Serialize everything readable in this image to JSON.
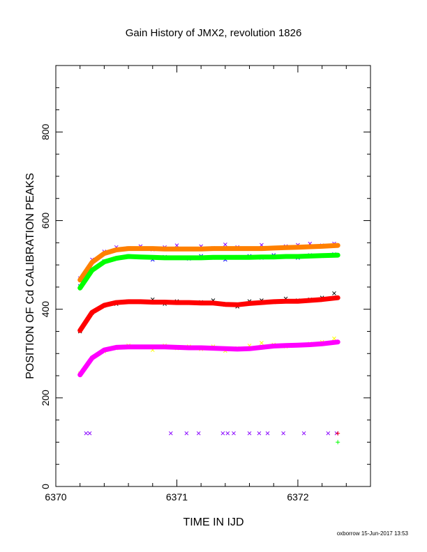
{
  "chart_data": {
    "type": "scatter",
    "title": "Gain History of JMX2, revolution 1826",
    "xlabel": "TIME IN IJD",
    "ylabel": "POSITION OF Cd CALIBRATION PEAKS",
    "xlim": [
      6370,
      6372.6
    ],
    "ylim": [
      0,
      950
    ],
    "x_ticks": [
      6370,
      6371,
      6372
    ],
    "x_tick_labels": [
      "6370",
      "6371",
      "6372"
    ],
    "y_ticks": [
      0,
      200,
      400,
      600,
      800
    ],
    "y_tick_labels": [
      "0",
      "200",
      "400",
      "600",
      "800"
    ],
    "footer": "oxborrow 15-Jun-2017 13:53",
    "series": [
      {
        "color": "#8800ff",
        "marker": "x",
        "role": "points",
        "x": [
          6370.2,
          6370.3,
          6370.4,
          6370.5,
          6370.6,
          6370.7,
          6370.8,
          6370.9,
          6371.0,
          6371.1,
          6371.2,
          6371.3,
          6371.4,
          6371.5,
          6371.6,
          6371.7,
          6371.8,
          6371.9,
          6372.0,
          6372.1,
          6372.2,
          6372.3
        ],
        "y": [
          470,
          512,
          530,
          540,
          538,
          542,
          535,
          540,
          544,
          536,
          542,
          538,
          546,
          540,
          536,
          545,
          538,
          542,
          545,
          548,
          544,
          548
        ]
      },
      {
        "color": "#0000ff",
        "marker": "x",
        "role": "points",
        "x": [
          6370.2,
          6370.3,
          6370.4,
          6370.5,
          6370.6,
          6370.7,
          6370.8,
          6370.9,
          6371.0,
          6371.1,
          6371.2,
          6371.3,
          6371.4,
          6371.5,
          6371.6,
          6371.7,
          6371.8,
          6371.9,
          6372.0,
          6372.1,
          6372.2,
          6372.3
        ],
        "y": [
          452,
          492,
          508,
          514,
          520,
          518,
          512,
          518,
          516,
          514,
          520,
          516,
          512,
          518,
          520,
          516,
          522,
          518,
          516,
          522,
          520,
          524
        ]
      },
      {
        "color": "#000000",
        "marker": "x",
        "role": "points",
        "x": [
          6370.2,
          6370.3,
          6370.4,
          6370.5,
          6370.6,
          6370.7,
          6370.8,
          6370.9,
          6371.0,
          6371.1,
          6371.2,
          6371.3,
          6371.4,
          6371.5,
          6371.6,
          6371.7,
          6371.8,
          6371.9,
          6372.0,
          6372.1,
          6372.2,
          6372.3
        ],
        "y": [
          350,
          392,
          408,
          412,
          418,
          416,
          422,
          412,
          418,
          414,
          416,
          420,
          410,
          406,
          418,
          420,
          416,
          424,
          420,
          422,
          426,
          436
        ]
      },
      {
        "color": "#ffff00",
        "marker": "x",
        "role": "points",
        "x": [
          6370.2,
          6370.3,
          6370.4,
          6370.5,
          6370.6,
          6370.7,
          6370.8,
          6370.9,
          6371.0,
          6371.1,
          6371.2,
          6371.3,
          6371.4,
          6371.5,
          6371.6,
          6371.7,
          6371.8,
          6371.9,
          6372.0,
          6372.1,
          6372.2,
          6372.3
        ],
        "y": [
          255,
          290,
          305,
          312,
          318,
          314,
          308,
          318,
          312,
          316,
          310,
          316,
          306,
          312,
          318,
          324,
          320,
          316,
          318,
          322,
          326,
          334
        ]
      },
      {
        "color": "#ff8000",
        "marker": "line",
        "role": "fit",
        "x": [
          6370.2,
          6370.3,
          6370.4,
          6370.5,
          6370.6,
          6370.7,
          6370.8,
          6370.9,
          6371.0,
          6371.1,
          6371.2,
          6371.3,
          6371.4,
          6371.5,
          6371.6,
          6371.7,
          6371.8,
          6371.9,
          6372.0,
          6372.1,
          6372.2,
          6372.33
        ],
        "y": [
          466,
          506,
          526,
          534,
          537,
          537,
          537,
          536,
          536,
          536,
          536,
          537,
          537,
          537,
          537,
          537,
          538,
          539,
          540,
          541,
          542,
          544
        ]
      },
      {
        "color": "#00ff00",
        "marker": "line",
        "role": "fit",
        "x": [
          6370.2,
          6370.3,
          6370.4,
          6370.5,
          6370.6,
          6370.7,
          6370.8,
          6370.9,
          6371.0,
          6371.1,
          6371.2,
          6371.3,
          6371.4,
          6371.5,
          6371.6,
          6371.7,
          6371.8,
          6371.9,
          6372.0,
          6372.1,
          6372.2,
          6372.33
        ],
        "y": [
          448,
          488,
          507,
          515,
          519,
          518,
          517,
          516,
          516,
          516,
          516,
          517,
          517,
          517,
          517,
          518,
          518,
          519,
          519,
          520,
          521,
          522
        ]
      },
      {
        "color": "#ff0000",
        "marker": "line",
        "role": "fit",
        "x": [
          6370.2,
          6370.3,
          6370.4,
          6370.5,
          6370.6,
          6370.7,
          6370.8,
          6370.9,
          6371.0,
          6371.1,
          6371.2,
          6371.3,
          6371.4,
          6371.5,
          6371.6,
          6371.7,
          6371.8,
          6371.9,
          6372.0,
          6372.1,
          6372.2,
          6372.33
        ],
        "y": [
          352,
          393,
          409,
          415,
          417,
          417,
          416,
          416,
          415,
          415,
          414,
          414,
          411,
          410,
          413,
          415,
          417,
          418,
          418,
          420,
          422,
          426
        ]
      },
      {
        "color": "#ff00ff",
        "marker": "line",
        "role": "fit",
        "x": [
          6370.2,
          6370.3,
          6370.4,
          6370.5,
          6370.6,
          6370.7,
          6370.8,
          6370.9,
          6371.0,
          6371.1,
          6371.2,
          6371.3,
          6371.4,
          6371.5,
          6371.6,
          6371.7,
          6371.8,
          6371.9,
          6372.0,
          6372.1,
          6372.2,
          6372.33
        ],
        "y": [
          252,
          290,
          308,
          314,
          315,
          315,
          315,
          315,
          314,
          313,
          313,
          312,
          311,
          310,
          311,
          314,
          317,
          318,
          319,
          320,
          322,
          326
        ]
      },
      {
        "color": "#8800ff",
        "marker": "x",
        "role": "baseline",
        "x": [
          6370.25,
          6370.28,
          6370.95,
          6371.08,
          6371.18,
          6371.38,
          6371.42,
          6371.47,
          6371.6,
          6371.68,
          6371.75,
          6371.88,
          6372.05,
          6372.25,
          6372.32
        ],
        "y": [
          120,
          120,
          120,
          120,
          120,
          120,
          120,
          120,
          120,
          120,
          120,
          120,
          120,
          120,
          120
        ]
      },
      {
        "color": "#00ff00",
        "marker": "plus",
        "role": "baseline",
        "x": [
          6372.33
        ],
        "y": [
          100
        ]
      },
      {
        "color": "#ff0000",
        "marker": "plus",
        "role": "baseline",
        "x": [
          6372.33
        ],
        "y": [
          120
        ]
      }
    ]
  }
}
